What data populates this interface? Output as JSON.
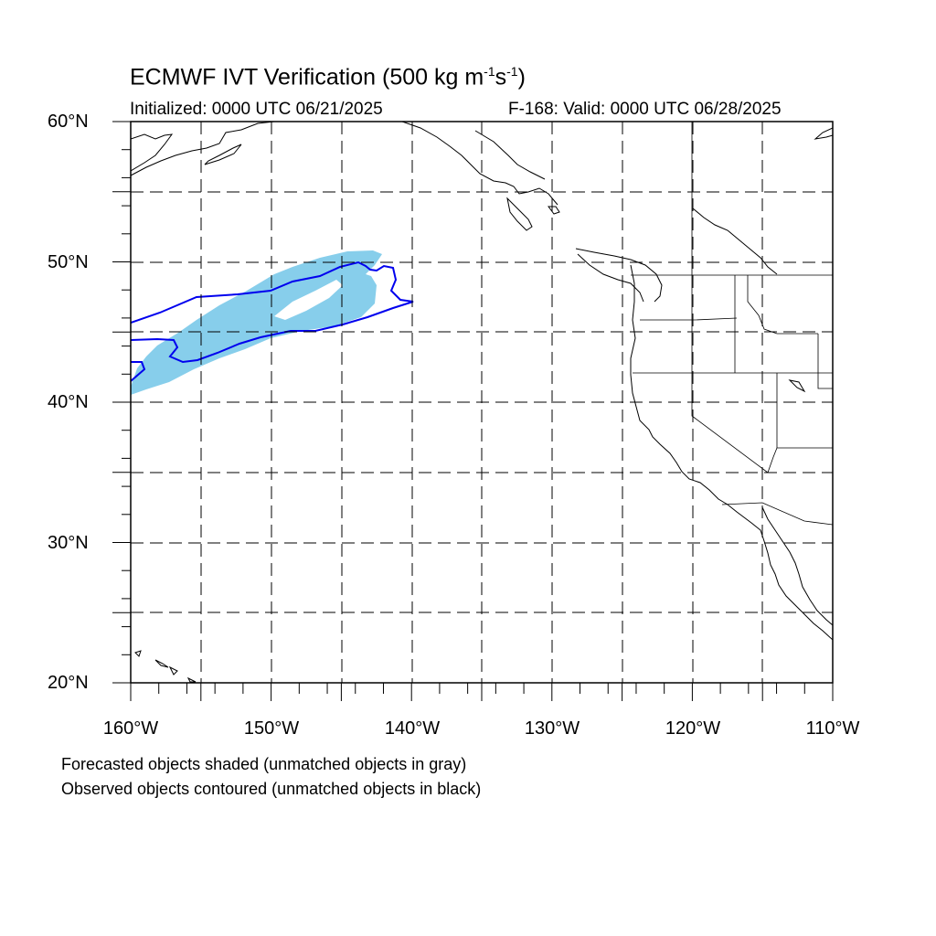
{
  "title": {
    "prefix": "ECMWF IVT Verification (500 kg m",
    "exp1": "-1",
    "mid": "s",
    "exp2": "-1",
    "suffix": ")"
  },
  "subtitle_left": "Initialized: 0000 UTC 06/21/2025",
  "subtitle_right": "F-168: Valid: 0000 UTC 06/28/2025",
  "lat_labels": [
    "60°N",
    "50°N",
    "40°N",
    "30°N",
    "20°N"
  ],
  "lon_labels": [
    "160°W",
    "150°W",
    "140°W",
    "130°W",
    "120°W",
    "110°W"
  ],
  "map_extent": {
    "lon_min": -160,
    "lon_max": -110,
    "lat_min": 20,
    "lat_max": 60
  },
  "notes": [
    "Forecasted objects shaded (unmatched objects in gray)",
    "Observed objects contoured (unmatched objects in black)"
  ],
  "colors": {
    "forecast_fill": "#87ceeb",
    "observed_contour": "#0000ee",
    "coastline": "#000000",
    "grid": "#000000"
  }
}
